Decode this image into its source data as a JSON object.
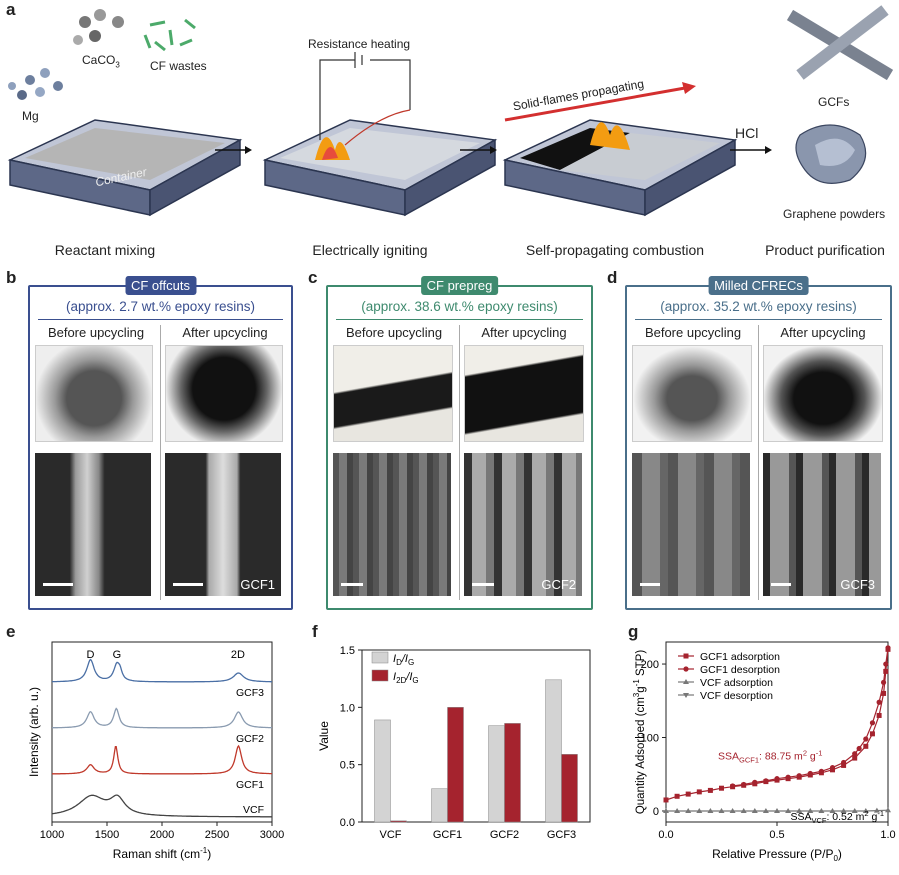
{
  "panel_a": {
    "label": "a",
    "reactants": {
      "mg": "Mg",
      "caco3": "CaCO",
      "caco3_sub": "3",
      "cf_wastes": "CF wastes",
      "container": "Container"
    },
    "resistance_heating": "Resistance heating",
    "solid_flames": "Solid-flames propagating",
    "hcl": "HCl",
    "gcfs": "GCFs",
    "graphene_powders": "Graphene powders",
    "stages": [
      "Reactant mixing",
      "Electrically igniting",
      "Self-propagating combustion",
      "Product purification"
    ]
  },
  "panel_b": {
    "label": "b",
    "title": "CF offcuts",
    "subtitle": "(approx. 2.7 wt.% epoxy resins)",
    "before": "Before upcycling",
    "after": "After upcycling",
    "sem_label": "GCF1",
    "color": "#3a4f8f"
  },
  "panel_c": {
    "label": "c",
    "title": "CF prepreg",
    "subtitle": "(approx. 38.6 wt.% epoxy resins)",
    "before": "Before upcycling",
    "after": "After upcycling",
    "sem_label": "GCF2",
    "color": "#3e8a6e"
  },
  "panel_d": {
    "label": "d",
    "title": "Milled CFRECs",
    "subtitle": "(approx. 35.2 wt.% epoxy resins)",
    "before": "Before upcycling",
    "after": "After upcycling",
    "sem_label": "GCF3",
    "color": "#4a6f8a"
  },
  "chart_data": [
    {
      "panel": "e",
      "type": "line",
      "xlabel": "Raman shift (cm",
      "xlabel_sup": "-1",
      "xlabel_end": ")",
      "ylabel": "Intensity (arb. u.)",
      "xlim": [
        1000,
        3000
      ],
      "xticks": [
        "1000",
        "1500",
        "2000",
        "2500",
        "3000"
      ],
      "peak_labels": [
        "D",
        "G",
        "2D"
      ],
      "series": [
        {
          "name": "GCF3",
          "color": "#4a6fa5"
        },
        {
          "name": "GCF2",
          "color": "#8a9bb0"
        },
        {
          "name": "GCF1",
          "color": "#c0392b"
        },
        {
          "name": "VCF",
          "color": "#444444"
        }
      ]
    },
    {
      "panel": "f",
      "type": "bar",
      "ylabel": "Value",
      "ylim": [
        0,
        1.5
      ],
      "yticks": [
        "0.0",
        "0.5",
        "1.0",
        "1.5"
      ],
      "categories": [
        "VCF",
        "GCF1",
        "GCF2",
        "GCF3"
      ],
      "series": [
        {
          "name": "ID/IG",
          "name_main": "I",
          "name_sub1": "D",
          "name_sep": "/I",
          "name_sub2": "G",
          "color": "#d3d3d3",
          "values": [
            0.89,
            0.29,
            0.84,
            1.24
          ]
        },
        {
          "name": "I2D/IG",
          "name_main": "I",
          "name_sub1": "2D",
          "name_sep": "/I",
          "name_sub2": "G",
          "color": "#a5232e",
          "values": [
            0.01,
            1.0,
            0.86,
            0.59
          ]
        }
      ]
    },
    {
      "panel": "g",
      "type": "line",
      "xlabel": "Relative Pressure (P/P",
      "xlabel_sub": "0",
      "xlabel_end": ")",
      "ylabel": "Quantity Adsorbed (cm",
      "ylabel_sup1": "3",
      "ylabel_mid": "g",
      "ylabel_sup2": "-1",
      "ylabel_end": " STP)",
      "xlim": [
        0,
        1
      ],
      "ylim": [
        -15,
        230
      ],
      "xticks": [
        "0.0",
        "0.5",
        "1.0"
      ],
      "yticks": [
        "0",
        "100",
        "200"
      ],
      "legend": [
        "GCF1 adsorption",
        "GCF1 desorption",
        "VCF adsorption",
        "VCF desorption"
      ],
      "ssa_gcf1": "SSA",
      "ssa_gcf1_sub": "GCF1",
      "ssa_gcf1_val": ": 88.75 m",
      "ssa_vcf": "SSA",
      "ssa_vcf_sub": "VCF",
      "ssa_vcf_val": ": 0.52 m",
      "unit_sup2": "2",
      "unit_g": " g",
      "unit_sup_neg1": "-1",
      "gcf1_adsorption": {
        "x": [
          0.0,
          0.05,
          0.1,
          0.15,
          0.2,
          0.25,
          0.3,
          0.35,
          0.4,
          0.45,
          0.5,
          0.55,
          0.6,
          0.65,
          0.7,
          0.75,
          0.8,
          0.85,
          0.9,
          0.93,
          0.96,
          0.98,
          0.99,
          1.0
        ],
        "y": [
          15,
          20,
          23,
          26,
          28,
          31,
          33,
          35,
          37,
          40,
          42,
          44,
          46,
          49,
          52,
          56,
          62,
          72,
          88,
          105,
          130,
          160,
          190,
          220
        ]
      },
      "gcf1_desorption": {
        "x": [
          1.0,
          0.99,
          0.98,
          0.96,
          0.93,
          0.9,
          0.87,
          0.85,
          0.8,
          0.75,
          0.7,
          0.65,
          0.6,
          0.55,
          0.5,
          0.45,
          0.4,
          0.35,
          0.3
        ],
        "y": [
          222,
          200,
          175,
          148,
          120,
          98,
          85,
          78,
          66,
          59,
          54,
          51,
          48,
          46,
          44,
          41,
          39,
          36,
          34
        ]
      },
      "vcf": {
        "x": [
          0,
          0.05,
          0.1,
          0.15,
          0.2,
          0.25,
          0.3,
          0.35,
          0.4,
          0.45,
          0.5,
          0.55,
          0.6,
          0.65,
          0.7,
          0.75,
          0.8,
          0.85,
          0.9,
          0.95,
          1.0
        ],
        "y": [
          0,
          0,
          0,
          0,
          0,
          0,
          0,
          0,
          0,
          0,
          0,
          0,
          0,
          0,
          0,
          0,
          0,
          0,
          0,
          0.5,
          1
        ]
      }
    }
  ]
}
